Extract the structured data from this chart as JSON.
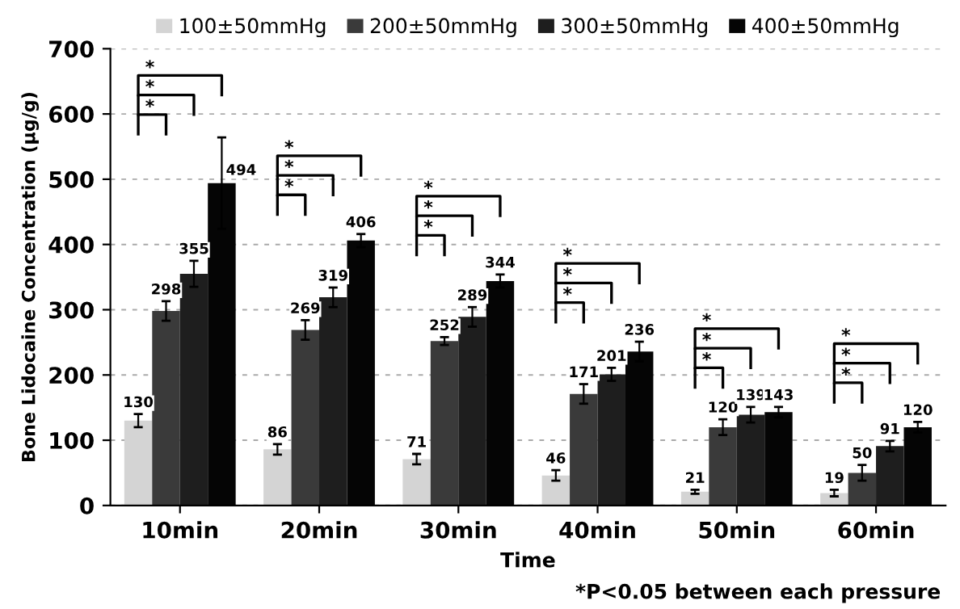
{
  "chart_data": {
    "type": "bar",
    "xlabel": "Time",
    "ylabel": "Bone Lidocaine Concentration (μg/g)",
    "categories": [
      "10min",
      "20min",
      "30min",
      "40min",
      "50min",
      "60min"
    ],
    "series": [
      {
        "name": "100±50mmHg",
        "color": "#d4d4d4",
        "values": [
          130,
          86,
          71,
          46,
          21,
          19
        ],
        "errors": [
          10,
          8,
          8,
          8,
          3,
          5
        ]
      },
      {
        "name": "200±50mmHg",
        "color": "#3a3a3a",
        "values": [
          298,
          269,
          252,
          171,
          120,
          50
        ],
        "errors": [
          15,
          15,
          6,
          15,
          12,
          12
        ]
      },
      {
        "name": "300±50mmHg",
        "color": "#1e1e1e",
        "values": [
          355,
          319,
          289,
          201,
          139,
          91
        ],
        "errors": [
          20,
          15,
          15,
          10,
          12,
          8
        ]
      },
      {
        "name": "400±50mmHg",
        "color": "#050505",
        "values": [
          494,
          406,
          344,
          236,
          143,
          120
        ],
        "errors": [
          70,
          10,
          10,
          15,
          8,
          8
        ]
      }
    ],
    "data_labels": true,
    "ylim": [
      0,
      700
    ],
    "yticks": [
      0,
      100,
      200,
      300,
      400,
      500,
      600,
      700
    ],
    "grid": "y",
    "legend": "top",
    "annotations": [
      "*",
      "*",
      "*",
      "*",
      "*",
      "*",
      "*",
      "*",
      "*",
      "*",
      "*",
      "*",
      "*",
      "*",
      "*",
      "*",
      "*",
      "*",
      "*P<0.05 between each pressure"
    ]
  }
}
